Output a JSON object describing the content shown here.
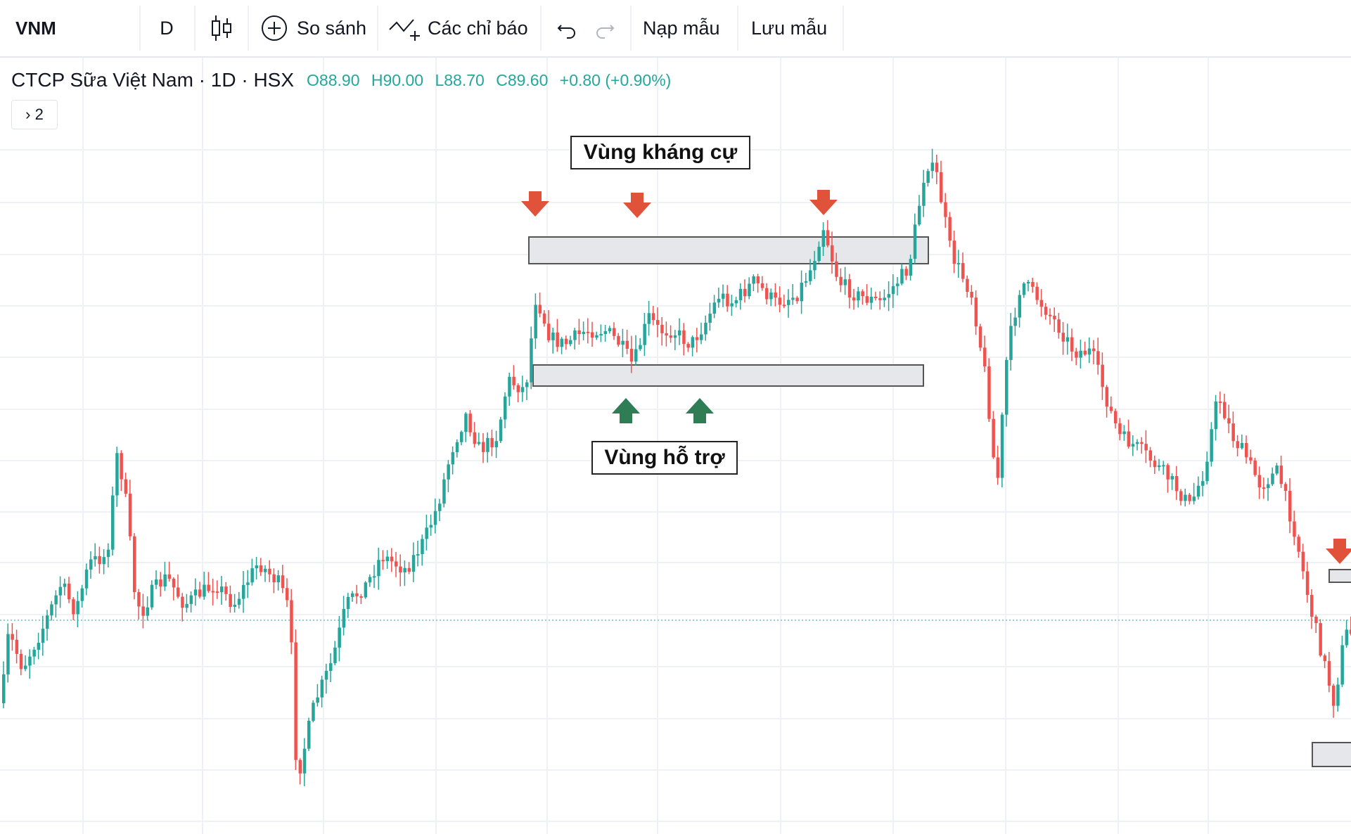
{
  "toolbar": {
    "symbol": "VNM",
    "interval": "D",
    "compare_label": "So sánh",
    "indicators_label": "Các chỉ báo",
    "load_template_label": "Nạp mẫu",
    "save_template_label": "Lưu mẫu",
    "icons": [
      "candles-icon",
      "plus-circle-icon",
      "indicators-icon",
      "undo-icon",
      "redo-icon"
    ]
  },
  "legend": {
    "title": "CTCP Sữa Việt Nam · 1D · HSX",
    "open": "O88.90",
    "high": "H90.00",
    "low": "L88.70",
    "close": "C89.60",
    "change": "+0.80 (+0.90%)",
    "collapse_label": "› 2"
  },
  "annotations": {
    "resistance_label": "Vùng kháng cự",
    "support_label": "Vùng hỗ trợ"
  },
  "colors": {
    "up": "#26a69a",
    "down": "#ef5350",
    "down_arrow": "#e0533a",
    "up_arrow": "#2e7d55",
    "zone_fill": "#e6e7ea",
    "grid": "#eef1f5"
  },
  "chart_data": {
    "type": "candlestick",
    "symbol": "VNM",
    "interval": "1D",
    "exchange": "HSX",
    "grid": true,
    "zones": [
      {
        "label": "Vùng kháng cự",
        "kind": "resistance"
      },
      {
        "label": "Vùng hỗ trợ",
        "kind": "support"
      }
    ],
    "markers": {
      "down_arrows": 4,
      "up_arrows": 2
    }
  }
}
